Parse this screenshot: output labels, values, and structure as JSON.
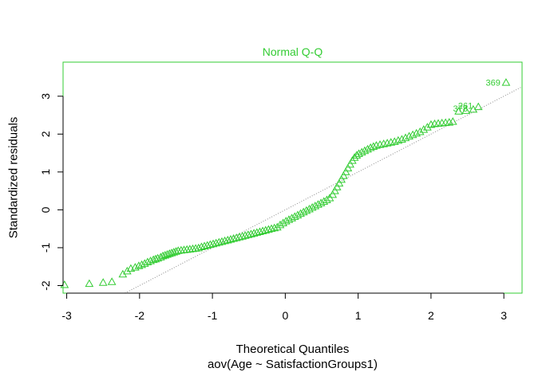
{
  "chart_data": {
    "type": "scatter",
    "title": "Normal Q-Q",
    "xlabel": "Theoretical Quantiles",
    "subtitle": "aov(Age ~ SatisfactionGroups1)",
    "ylabel": "Standardized residuals",
    "xlim": [
      -3.05,
      3.25
    ],
    "ylim": [
      -2.2,
      3.9
    ],
    "x_ticks": [
      "-3",
      "-2",
      "-1",
      "0",
      "1",
      "2",
      "3"
    ],
    "y_ticks": [
      "-2",
      "-1",
      "0",
      "1",
      "2",
      "3"
    ],
    "colors": {
      "accent": "#33cc33",
      "reference_line": "#888888"
    },
    "marker": "open-triangle",
    "reference_line": {
      "type": "dotted",
      "slope": 1.0,
      "intercept": 0.0
    },
    "annotations": [
      {
        "text": "369",
        "x": 3.03,
        "y": 3.36
      },
      {
        "text": "261",
        "x": 2.65,
        "y": 2.75
      },
      {
        "text": "378",
        "x": 2.58,
        "y": 2.68
      }
    ],
    "series": [
      {
        "points": [
          [
            -3.03,
            -1.98
          ],
          [
            -2.69,
            -1.95
          ],
          [
            -2.5,
            -1.92
          ],
          [
            -2.38,
            -1.9
          ],
          [
            -2.23,
            -1.7
          ],
          [
            -2.17,
            -1.62
          ],
          [
            -2.12,
            -1.55
          ],
          [
            -2.06,
            -1.52
          ],
          [
            -2.01,
            -1.48
          ],
          [
            -1.97,
            -1.45
          ],
          [
            -1.93,
            -1.42
          ],
          [
            -1.89,
            -1.38
          ],
          [
            -1.85,
            -1.35
          ],
          [
            -1.81,
            -1.32
          ],
          [
            -1.78,
            -1.3
          ],
          [
            -1.75,
            -1.28
          ],
          [
            -1.71,
            -1.25
          ],
          [
            -1.68,
            -1.22
          ],
          [
            -1.65,
            -1.2
          ],
          [
            -1.62,
            -1.18
          ],
          [
            -1.59,
            -1.16
          ],
          [
            -1.56,
            -1.14
          ],
          [
            -1.53,
            -1.12
          ],
          [
            -1.5,
            -1.1
          ],
          [
            -1.47,
            -1.08
          ],
          [
            -1.43,
            -1.07
          ],
          [
            -1.39,
            -1.06
          ],
          [
            -1.35,
            -1.05
          ],
          [
            -1.31,
            -1.04
          ],
          [
            -1.27,
            -1.03
          ],
          [
            -1.23,
            -1.02
          ],
          [
            -1.19,
            -1.01
          ],
          [
            -1.15,
            -0.98
          ],
          [
            -1.11,
            -0.96
          ],
          [
            -1.07,
            -0.94
          ],
          [
            -1.03,
            -0.92
          ],
          [
            -0.99,
            -0.9
          ],
          [
            -0.95,
            -0.88
          ],
          [
            -0.91,
            -0.86
          ],
          [
            -0.87,
            -0.84
          ],
          [
            -0.83,
            -0.82
          ],
          [
            -0.79,
            -0.8
          ],
          [
            -0.75,
            -0.78
          ],
          [
            -0.71,
            -0.76
          ],
          [
            -0.67,
            -0.74
          ],
          [
            -0.63,
            -0.72
          ],
          [
            -0.59,
            -0.7
          ],
          [
            -0.55,
            -0.68
          ],
          [
            -0.51,
            -0.66
          ],
          [
            -0.47,
            -0.64
          ],
          [
            -0.43,
            -0.62
          ],
          [
            -0.39,
            -0.6
          ],
          [
            -0.35,
            -0.58
          ],
          [
            -0.31,
            -0.56
          ],
          [
            -0.27,
            -0.54
          ],
          [
            -0.23,
            -0.52
          ],
          [
            -0.19,
            -0.5
          ],
          [
            -0.15,
            -0.48
          ],
          [
            -0.11,
            -0.46
          ],
          [
            -0.07,
            -0.4
          ],
          [
            -0.03,
            -0.35
          ],
          [
            0.01,
            -0.3
          ],
          [
            0.05,
            -0.26
          ],
          [
            0.09,
            -0.22
          ],
          [
            0.13,
            -0.18
          ],
          [
            0.17,
            -0.14
          ],
          [
            0.21,
            -0.1
          ],
          [
            0.25,
            -0.06
          ],
          [
            0.29,
            -0.02
          ],
          [
            0.33,
            0.02
          ],
          [
            0.37,
            0.06
          ],
          [
            0.41,
            0.1
          ],
          [
            0.45,
            0.14
          ],
          [
            0.49,
            0.18
          ],
          [
            0.53,
            0.22
          ],
          [
            0.57,
            0.26
          ],
          [
            0.61,
            0.31
          ],
          [
            0.65,
            0.4
          ],
          [
            0.68,
            0.5
          ],
          [
            0.71,
            0.6
          ],
          [
            0.74,
            0.7
          ],
          [
            0.77,
            0.8
          ],
          [
            0.8,
            0.9
          ],
          [
            0.83,
            1.0
          ],
          [
            0.86,
            1.1
          ],
          [
            0.89,
            1.2
          ],
          [
            0.92,
            1.3
          ],
          [
            0.95,
            1.38
          ],
          [
            0.98,
            1.44
          ],
          [
            1.01,
            1.48
          ],
          [
            1.05,
            1.52
          ],
          [
            1.09,
            1.56
          ],
          [
            1.13,
            1.6
          ],
          [
            1.17,
            1.64
          ],
          [
            1.21,
            1.67
          ],
          [
            1.25,
            1.7
          ],
          [
            1.3,
            1.72
          ],
          [
            1.35,
            1.74
          ],
          [
            1.4,
            1.76
          ],
          [
            1.45,
            1.78
          ],
          [
            1.5,
            1.8
          ],
          [
            1.55,
            1.83
          ],
          [
            1.6,
            1.86
          ],
          [
            1.65,
            1.9
          ],
          [
            1.7,
            1.94
          ],
          [
            1.75,
            1.98
          ],
          [
            1.8,
            2.02
          ],
          [
            1.85,
            2.06
          ],
          [
            1.9,
            2.12
          ],
          [
            1.95,
            2.18
          ],
          [
            2.0,
            2.25
          ],
          [
            2.05,
            2.27
          ],
          [
            2.1,
            2.28
          ],
          [
            2.15,
            2.29
          ],
          [
            2.2,
            2.3
          ],
          [
            2.25,
            2.31
          ],
          [
            2.3,
            2.33
          ],
          [
            2.38,
            2.6
          ],
          [
            2.48,
            2.62
          ],
          [
            2.58,
            2.65
          ],
          [
            2.65,
            2.72
          ],
          [
            3.03,
            3.36
          ]
        ]
      }
    ]
  }
}
